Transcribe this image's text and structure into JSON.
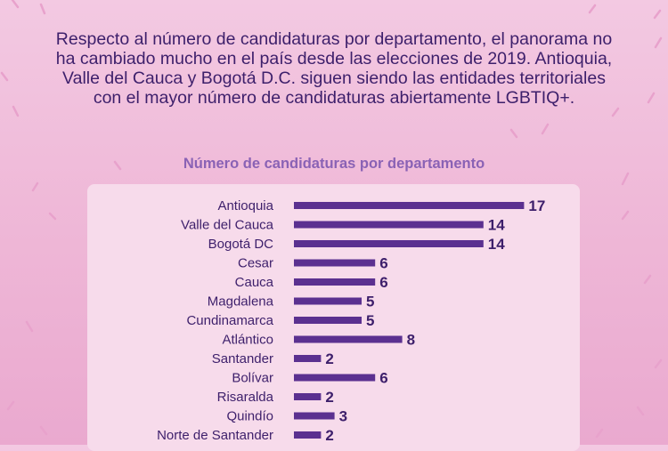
{
  "intro_text": "Respecto al número de candidaturas por departamento, el panorama no ha cambiado mucho en el país desde las elecciones de 2019. Antioquia, Valle del Cauca y Bogotá D.C. siguen siendo las entidades territoriales con el mayor número de candidaturas abiertamente LGBTIQ+.",
  "colors": {
    "background": "#efb9d8",
    "panel": "#f7dbeb",
    "bar": "#5b3090",
    "text": "#3d1f6b",
    "title": "#8a62b5",
    "confetti": "#e8a2cc"
  },
  "chart_data": {
    "type": "bar",
    "orientation": "horizontal",
    "title": "Número de candidaturas por departamento",
    "categories": [
      "Antioquia",
      "Valle del Cauca",
      "Bogotá DC",
      "Cesar",
      "Cauca",
      "Magdalena",
      "Cundinamarca",
      "Atlántico",
      "Santander",
      "Bolívar",
      "Risaralda",
      "Quindío",
      "Norte de Santander"
    ],
    "values": [
      17,
      14,
      14,
      6,
      6,
      5,
      5,
      8,
      2,
      6,
      2,
      3,
      2
    ],
    "data_labels": true,
    "grid": false,
    "legend": "none"
  }
}
